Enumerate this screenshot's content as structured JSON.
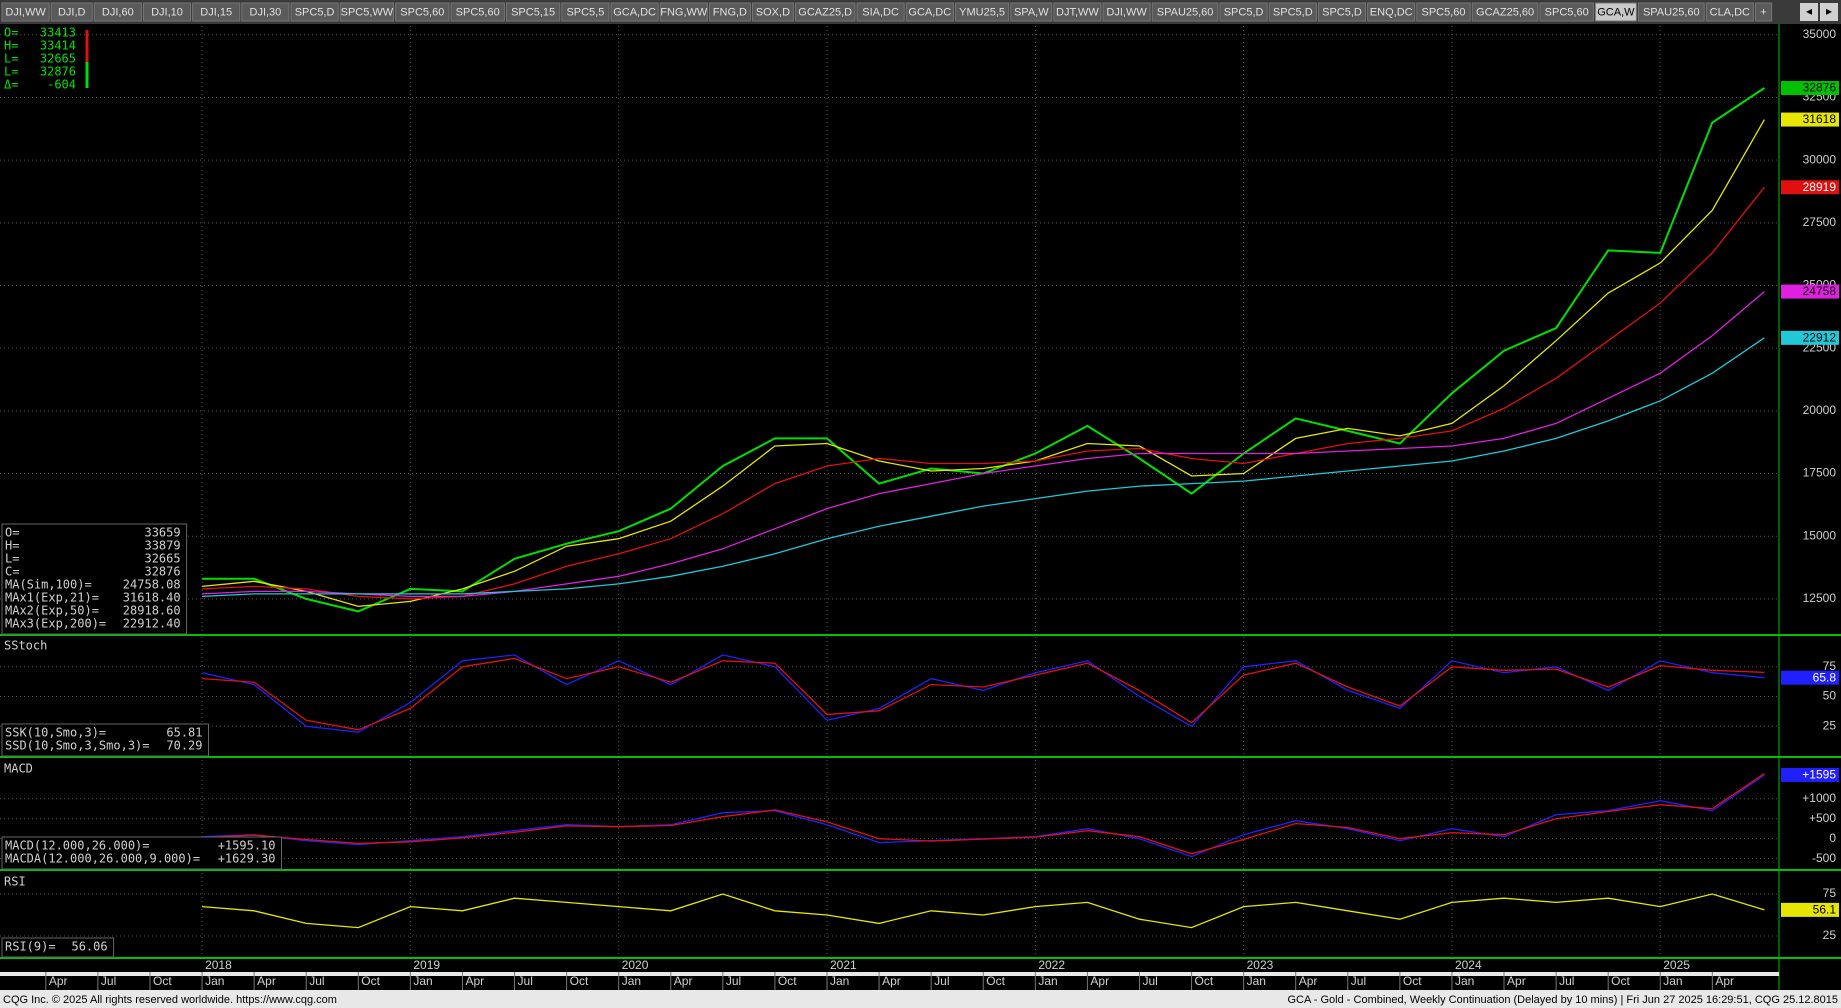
{
  "tabs": [
    "DJI,WW",
    "DJI,D",
    "DJI,60",
    "DJI,10",
    "DJI,15",
    "DJI,30",
    "SPC5,D",
    "SPC5,WW",
    "SPC5,60",
    "SPC5,60",
    "SPC5,15",
    "SPC5,5",
    "GCA,DC",
    "FNG,WW",
    "FNG,D",
    "SOX,D",
    "GCAZ25,D",
    "SIA,DC",
    "GCA,DC",
    "YMU25,5",
    "SPA,W",
    "DJT,WW",
    "DJI,WW",
    "SPAU25,60",
    "SPC5,D",
    "SPC5,D",
    "SPC5,D",
    "ENQ,DC",
    "SPC5,60",
    "GCAZ25,60",
    "SPC5,60",
    "GCA,W",
    "SPAU25,60",
    "CLA,DC",
    "+"
  ],
  "active_tab": 31,
  "quote": [
    [
      "O=",
      "33413"
    ],
    [
      "H=",
      "33414"
    ],
    [
      "L=",
      "32665"
    ],
    [
      "L=",
      "32876"
    ],
    [
      "Δ=",
      "-604"
    ]
  ],
  "footer": {
    "left": "CQG Inc. © 2025 All rights reserved worldwide. https://www.cqg.com",
    "right": "GCA - Gold - Combined, Weekly Continuation (Delayed by 10 mins) | Fri Jun 27 2025 16:29:51, CQG 25.12.8015"
  },
  "chart_data": [
    {
      "type": "line",
      "ylim": [
        11100,
        35350
      ],
      "yticks": [
        35000,
        32500,
        30000,
        27500,
        25000,
        22500,
        20000,
        17500,
        15000,
        12500
      ],
      "x": [
        2018,
        2018.25,
        2018.5,
        2018.75,
        2019,
        2019.25,
        2019.5,
        2019.75,
        2020,
        2020.25,
        2020.5,
        2020.75,
        2021,
        2021.25,
        2021.5,
        2021.75,
        2022,
        2022.25,
        2022.5,
        2022.75,
        2023,
        2023.25,
        2023.5,
        2023.75,
        2024,
        2024.25,
        2024.5,
        2024.75,
        2025,
        2025.25,
        2025.5
      ],
      "series": [
        {
          "color": "#00e000",
          "values": [
            13300,
            13300,
            12500,
            12000,
            12900,
            12800,
            14100,
            14700,
            15200,
            16100,
            17800,
            18900,
            18900,
            17100,
            17700,
            17500,
            18300,
            19400,
            18100,
            16700,
            18300,
            19700,
            19200,
            18700,
            20700,
            22400,
            23300,
            26400,
            26300,
            31500,
            32876
          ]
        },
        {
          "color": "#e6e600",
          "values": [
            13000,
            13200,
            12800,
            12200,
            12400,
            12900,
            13600,
            14600,
            14900,
            15600,
            17000,
            18600,
            18700,
            18000,
            17600,
            17700,
            18000,
            18700,
            18600,
            17400,
            17500,
            18900,
            19300,
            19000,
            19500,
            21000,
            22800,
            24700,
            25900,
            28000,
            31618.4
          ]
        },
        {
          "color": "#e01010",
          "values": [
            12900,
            13000,
            12900,
            12600,
            12500,
            12600,
            13100,
            13800,
            14300,
            14900,
            15900,
            17100,
            17800,
            18100,
            17900,
            17900,
            18000,
            18400,
            18500,
            18100,
            17900,
            18300,
            18700,
            18900,
            19200,
            20100,
            21300,
            22800,
            24300,
            26300,
            28918.6
          ]
        },
        {
          "color": "#e020e0",
          "values": [
            12700,
            12800,
            12800,
            12700,
            12600,
            12600,
            12800,
            13100,
            13400,
            13900,
            14500,
            15300,
            16100,
            16700,
            17100,
            17500,
            17800,
            18100,
            18300,
            18300,
            18300,
            18300,
            18400,
            18500,
            18600,
            18900,
            19500,
            20500,
            21500,
            23000,
            24758.08
          ]
        },
        {
          "color": "#20c8d8",
          "values": [
            12600,
            12700,
            12700,
            12700,
            12700,
            12700,
            12800,
            12900,
            13100,
            13400,
            13800,
            14300,
            14900,
            15400,
            15800,
            16200,
            16500,
            16800,
            17000,
            17100,
            17200,
            17400,
            17600,
            17800,
            18000,
            18400,
            18900,
            19600,
            20400,
            21500,
            22912.4
          ]
        }
      ],
      "value_boxes": [
        {
          "value": 32876,
          "color": "#00c000"
        },
        {
          "value": 31618,
          "color": "#e6e600"
        },
        {
          "value": 28919,
          "color": "#e01010"
        },
        {
          "value": 24758,
          "color": "#e020e0"
        },
        {
          "value": 22912,
          "color": "#20c8d8"
        }
      ],
      "readout": [
        [
          "O=",
          "33659"
        ],
        [
          "H=",
          "33879"
        ],
        [
          "L=",
          "32665"
        ],
        [
          "C=",
          "32876"
        ],
        [
          "MA(Sim,100)=",
          "24758.08"
        ],
        [
          "MAx1(Exp,21)=",
          "31618.40"
        ],
        [
          "MAx2(Exp,50)=",
          "28918.60"
        ],
        [
          "MAx3(Exp,200)=",
          "22912.40"
        ]
      ]
    },
    {
      "type": "line",
      "title": "SStoch",
      "ylim": [
        0,
        100
      ],
      "yticks": [
        25,
        50,
        75
      ],
      "x": [
        2018,
        2018.25,
        2018.5,
        2018.75,
        2019,
        2019.25,
        2019.5,
        2019.75,
        2020,
        2020.25,
        2020.5,
        2020.75,
        2021,
        2021.25,
        2021.5,
        2021.75,
        2022,
        2022.25,
        2022.5,
        2022.75,
        2023,
        2023.25,
        2023.5,
        2023.75,
        2024,
        2024.25,
        2024.5,
        2024.75,
        2025,
        2025.25,
        2025.5
      ],
      "series": [
        {
          "color": "#2020ff",
          "values": [
            70,
            60,
            25,
            20,
            45,
            80,
            85,
            60,
            80,
            60,
            85,
            75,
            30,
            40,
            65,
            55,
            70,
            80,
            50,
            25,
            75,
            80,
            55,
            40,
            80,
            70,
            75,
            55,
            80,
            70,
            65.81
          ]
        },
        {
          "color": "#e01010",
          "values": [
            65,
            62,
            30,
            22,
            40,
            75,
            82,
            65,
            75,
            62,
            80,
            78,
            35,
            38,
            60,
            58,
            68,
            78,
            55,
            28,
            68,
            78,
            58,
            42,
            75,
            72,
            73,
            58,
            76,
            72,
            70.29
          ]
        }
      ],
      "value_boxes": [
        {
          "value": 65.8,
          "color": "#2020ff"
        }
      ],
      "readout": [
        [
          "SSK(10,Smo,3)=",
          "65.81"
        ],
        [
          "SSD(10,Smo,3,Smo,3)=",
          "70.29"
        ]
      ]
    },
    {
      "type": "line",
      "title": "MACD",
      "ylim": [
        -760,
        1970
      ],
      "yticks": [
        {
          "value": 1000,
          "label": "+1000"
        },
        {
          "value": 500,
          "label": "+500"
        },
        0,
        -500
      ],
      "x": [
        2018,
        2018.25,
        2018.5,
        2018.75,
        2019,
        2019.25,
        2019.5,
        2019.75,
        2020,
        2020.25,
        2020.5,
        2020.75,
        2021,
        2021.25,
        2021.5,
        2021.75,
        2022,
        2022.25,
        2022.5,
        2022.75,
        2023,
        2023.25,
        2023.5,
        2023.75,
        2024,
        2024.25,
        2024.5,
        2024.75,
        2025,
        2025.25,
        2025.5
      ],
      "series": [
        {
          "color": "#2020ff",
          "values": [
            50,
            100,
            -50,
            -150,
            -50,
            50,
            200,
            350,
            300,
            350,
            650,
            700,
            350,
            -100,
            -50,
            0,
            50,
            250,
            0,
            -450,
            100,
            450,
            250,
            -50,
            250,
            50,
            600,
            700,
            950,
            700,
            1595.1
          ]
        },
        {
          "color": "#e01010",
          "values": [
            30,
            90,
            -20,
            -120,
            -80,
            20,
            160,
            320,
            300,
            330,
            550,
            720,
            420,
            0,
            -60,
            -10,
            40,
            200,
            50,
            -380,
            -20,
            380,
            280,
            0,
            150,
            100,
            500,
            680,
            850,
            750,
            1629.3
          ]
        }
      ],
      "value_boxes": [
        {
          "value": 1595,
          "label": "+1595",
          "color": "#2020ff"
        }
      ],
      "readout": [
        [
          "MACD(12.000,26.000)=",
          "+1595.10"
        ],
        [
          "MACDA(12.000,26.000,9.000)=",
          "+1629.30"
        ]
      ]
    },
    {
      "type": "line",
      "title": "RSI",
      "ylim": [
        0,
        100
      ],
      "yticks": [
        25,
        75
      ],
      "x": [
        2018,
        2018.25,
        2018.5,
        2018.75,
        2019,
        2019.25,
        2019.5,
        2019.75,
        2020,
        2020.25,
        2020.5,
        2020.75,
        2021,
        2021.25,
        2021.5,
        2021.75,
        2022,
        2022.25,
        2022.5,
        2022.75,
        2023,
        2023.25,
        2023.5,
        2023.75,
        2024,
        2024.25,
        2024.5,
        2024.75,
        2025,
        2025.25,
        2025.5
      ],
      "series": [
        {
          "color": "#e6e600",
          "values": [
            60,
            55,
            40,
            35,
            60,
            55,
            70,
            65,
            60,
            55,
            75,
            55,
            50,
            40,
            55,
            50,
            60,
            65,
            45,
            35,
            60,
            65,
            55,
            45,
            65,
            70,
            65,
            70,
            60,
            75,
            56.06
          ]
        }
      ],
      "value_boxes": [
        {
          "value": 56.1,
          "color": "#e6e600"
        }
      ],
      "readout": [
        [
          "RSI(9)=",
          "56.06"
        ]
      ],
      "xlim": [
        2017.03,
        2025.57
      ],
      "year_ticks": [
        2018,
        2019,
        2020,
        2021,
        2022,
        2023,
        2024,
        2025
      ],
      "xticks": [
        {
          "value": 2017.25,
          "label": "Apr"
        },
        {
          "value": 2017.5,
          "label": "Jul"
        },
        {
          "value": 2017.75,
          "label": "Oct"
        },
        {
          "value": 2018,
          "label": "Jan"
        },
        {
          "value": 2018.25,
          "label": "Apr"
        },
        {
          "value": 2018.5,
          "label": "Jul"
        },
        {
          "value": 2018.75,
          "label": "Oct"
        },
        {
          "value": 2019,
          "label": "Jan"
        },
        {
          "value": 2019.25,
          "label": "Apr"
        },
        {
          "value": 2019.5,
          "label": "Jul"
        },
        {
          "value": 2019.75,
          "label": "Oct"
        },
        {
          "value": 2020,
          "label": "Jan"
        },
        {
          "value": 2020.25,
          "label": "Apr"
        },
        {
          "value": 2020.5,
          "label": "Jul"
        },
        {
          "value": 2020.75,
          "label": "Oct"
        },
        {
          "value": 2021,
          "label": "Jan"
        },
        {
          "value": 2021.25,
          "label": "Apr"
        },
        {
          "value": 2021.5,
          "label": "Jul"
        },
        {
          "value": 2021.75,
          "label": "Oct"
        },
        {
          "value": 2022,
          "label": "Jan"
        },
        {
          "value": 2022.25,
          "label": "Apr"
        },
        {
          "value": 2022.5,
          "label": "Jul"
        },
        {
          "value": 2022.75,
          "label": "Oct"
        },
        {
          "value": 2023,
          "label": "Jan"
        },
        {
          "value": 2023.25,
          "label": "Apr"
        },
        {
          "value": 2023.5,
          "label": "Jul"
        },
        {
          "value": 2023.75,
          "label": "Oct"
        },
        {
          "value": 2024,
          "label": "Jan"
        },
        {
          "value": 2024.25,
          "label": "Apr"
        },
        {
          "value": 2024.5,
          "label": "Jul"
        },
        {
          "value": 2024.75,
          "label": "Oct"
        },
        {
          "value": 2025,
          "label": "Jan"
        },
        {
          "value": 2025.25,
          "label": "Apr"
        }
      ]
    }
  ]
}
